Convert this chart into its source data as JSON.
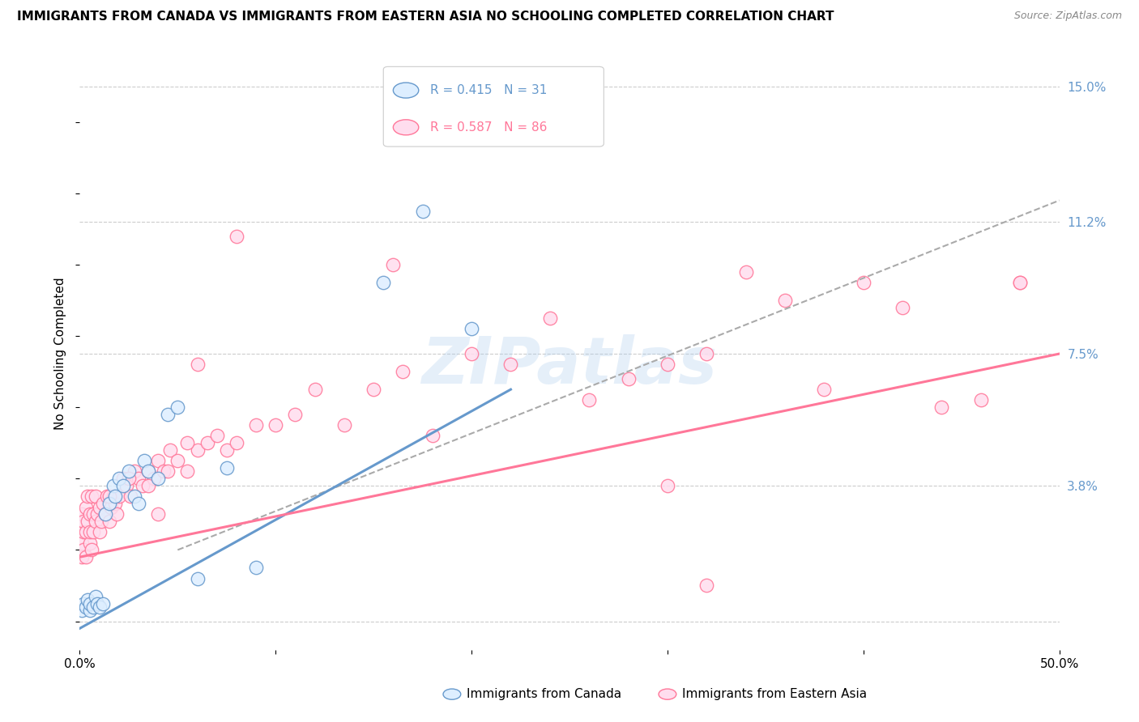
{
  "title": "IMMIGRANTS FROM CANADA VS IMMIGRANTS FROM EASTERN ASIA NO SCHOOLING COMPLETED CORRELATION CHART",
  "source": "Source: ZipAtlas.com",
  "ylabel": "No Schooling Completed",
  "xlim": [
    0.0,
    0.5
  ],
  "ylim": [
    -0.008,
    0.158
  ],
  "ytick_positions": [
    0.0,
    0.038,
    0.075,
    0.112,
    0.15
  ],
  "ytick_labels": [
    "",
    "3.8%",
    "7.5%",
    "11.2%",
    "15.0%"
  ],
  "canada_color": "#6699CC",
  "canada_color_fill": "#DDEEFF",
  "eastern_asia_color": "#FF7799",
  "eastern_asia_color_fill": "#FFDDEE",
  "canada_R": 0.415,
  "canada_N": 31,
  "eastern_asia_R": 0.587,
  "eastern_asia_N": 86,
  "watermark": "ZIPatlas",
  "canada_points_x": [
    0.001,
    0.002,
    0.003,
    0.004,
    0.005,
    0.005,
    0.007,
    0.008,
    0.009,
    0.01,
    0.012,
    0.013,
    0.015,
    0.017,
    0.018,
    0.02,
    0.022,
    0.025,
    0.028,
    0.03,
    0.033,
    0.035,
    0.04,
    0.045,
    0.05,
    0.06,
    0.075,
    0.09,
    0.155,
    0.175,
    0.2
  ],
  "canada_points_y": [
    0.003,
    0.005,
    0.004,
    0.006,
    0.003,
    0.005,
    0.004,
    0.007,
    0.005,
    0.004,
    0.005,
    0.03,
    0.033,
    0.038,
    0.035,
    0.04,
    0.038,
    0.042,
    0.035,
    0.033,
    0.045,
    0.042,
    0.04,
    0.058,
    0.06,
    0.012,
    0.043,
    0.015,
    0.095,
    0.115,
    0.082
  ],
  "ea_points_x": [
    0.001,
    0.001,
    0.001,
    0.002,
    0.002,
    0.002,
    0.003,
    0.003,
    0.003,
    0.004,
    0.004,
    0.005,
    0.005,
    0.005,
    0.006,
    0.006,
    0.007,
    0.007,
    0.008,
    0.008,
    0.009,
    0.01,
    0.01,
    0.011,
    0.012,
    0.013,
    0.014,
    0.015,
    0.016,
    0.017,
    0.018,
    0.019,
    0.02,
    0.022,
    0.024,
    0.026,
    0.028,
    0.03,
    0.032,
    0.035,
    0.038,
    0.04,
    0.043,
    0.046,
    0.05,
    0.055,
    0.06,
    0.065,
    0.07,
    0.075,
    0.08,
    0.09,
    0.1,
    0.11,
    0.12,
    0.135,
    0.15,
    0.165,
    0.18,
    0.2,
    0.22,
    0.24,
    0.26,
    0.28,
    0.3,
    0.32,
    0.34,
    0.36,
    0.38,
    0.4,
    0.42,
    0.44,
    0.46,
    0.48,
    0.015,
    0.025,
    0.035,
    0.045,
    0.055,
    0.32,
    0.04,
    0.06,
    0.08,
    0.16,
    0.48,
    0.3
  ],
  "ea_points_y": [
    0.022,
    0.018,
    0.03,
    0.025,
    0.02,
    0.028,
    0.025,
    0.032,
    0.018,
    0.028,
    0.035,
    0.022,
    0.03,
    0.025,
    0.02,
    0.035,
    0.025,
    0.03,
    0.028,
    0.035,
    0.03,
    0.025,
    0.032,
    0.028,
    0.033,
    0.03,
    0.035,
    0.028,
    0.032,
    0.035,
    0.033,
    0.03,
    0.035,
    0.04,
    0.038,
    0.035,
    0.042,
    0.04,
    0.038,
    0.042,
    0.04,
    0.045,
    0.042,
    0.048,
    0.045,
    0.042,
    0.048,
    0.05,
    0.052,
    0.048,
    0.05,
    0.055,
    0.055,
    0.058,
    0.065,
    0.055,
    0.065,
    0.07,
    0.052,
    0.075,
    0.072,
    0.085,
    0.062,
    0.068,
    0.072,
    0.075,
    0.098,
    0.09,
    0.065,
    0.095,
    0.088,
    0.06,
    0.062,
    0.095,
    0.035,
    0.04,
    0.038,
    0.042,
    0.05,
    0.01,
    0.03,
    0.072,
    0.108,
    0.1,
    0.095,
    0.038
  ],
  "canada_line": {
    "x0": 0.0,
    "y0": -0.002,
    "x1": 0.22,
    "y1": 0.065
  },
  "dashed_line": {
    "x0": 0.05,
    "y0": 0.02,
    "x1": 0.5,
    "y1": 0.118
  },
  "ea_line": {
    "x0": 0.0,
    "y0": 0.018,
    "x1": 0.5,
    "y1": 0.075
  }
}
